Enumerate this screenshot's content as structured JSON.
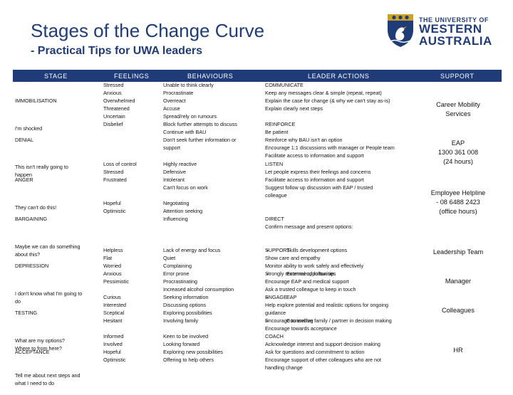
{
  "title": "Stages of the Change Curve",
  "subtitle": "- Practical Tips for UWA leaders",
  "logo": {
    "line1": "THE UNIVERSITY OF",
    "line2": "WESTERN",
    "line3": "AUSTRALIA"
  },
  "colors": {
    "brand": "#1f3c78",
    "crest_gold": "#c9a227"
  },
  "headers": {
    "stage": "STAGE",
    "feelings": "FEELINGS",
    "behaviours": "BEHAVIOURS",
    "leader_actions": "LEADER ACTIONS",
    "support": "SUPPORT"
  },
  "rows": [
    {
      "stage": "IMMOBILISATION",
      "quote": "I'm shocked",
      "feelings": "Stressed\nAnxious\nOverwhelmed\nThreatened\nUncertain\nDisbelief",
      "behaviours": "Unable to think clearly\nProcrastinate\nOverreact\nAccuse\nSpread/rely on rumours"
    },
    {
      "stage": "DENIAL",
      "quote": "This isn't really going to\nhappen",
      "feelings": "",
      "behaviours": "Block further attempts to discuss\nContinue with BAU\nDon't seek further information or\nsupport"
    },
    {
      "stage": "ANGER",
      "quote": "They can't do this!",
      "feelings": "Loss of control\nStressed\nFrustrated",
      "behaviours": "Highly reactive\nDefensive\nIntolerant\nCan't focus on work"
    },
    {
      "stage": "BARGAINING",
      "quote": "Maybe we can do something\nabout this?",
      "feelings": "Hopeful\nOptimistic",
      "behaviours": "Negotiating\nAttention seeking\nInfluencing"
    },
    {
      "stage": "DEPRESSION",
      "quote": "I don't know what I'm going to\ndo",
      "feelings": "Helpless\nFlat\nWorried\nAnxious\nPessimistic",
      "behaviours": "Lack of energy and focus\nQuiet\nComplaining\nError prone\nProcrastinating\nIncreased alcohol consumption"
    },
    {
      "stage": "TESTING",
      "quote": "What are my options?\nWhere to from here?",
      "feelings": "Curious\nInterested\nSceptical\nHesitant",
      "behaviours": "Seeking information\nDiscussing options\nExploring possibilities\nInvolving family"
    },
    {
      "stage": "ACCEPTANCE",
      "quote": "Tell me about next steps and\nwhat I need to do",
      "feelings": "Informed\nInvolved\nHopeful\nOptimistic",
      "behaviours": "Keen to be involved\nLooking forward\nExploring new possibilities\nOffering to help others"
    }
  ],
  "leader_actions": {
    "communicate": "COMMUNICATE\nKeep any messages clear & simple (repeat, repeat)\nExplain the case for change (& why we can't stay as-is)\nExplain clearly next steps",
    "reinforce": "REINFORCE\nBe patient\nReinforce why BAU isn't an option\nEncourage 1:1 discussions with manager or People team\nFacilitate access to information and support",
    "listen": "LISTEN\nLet people express their feelings and concerns\nFacilitate access to information and support\nSuggest follow up discussion with EAP / trusted\ncolleague",
    "direct": "DIRECT\nConfirm message and present options:",
    "direct_bullets": [
      "Skills development options",
      "External opportunities",
      "EAP",
      "Counselling"
    ],
    "support": "SUPPORT\nShow care and empathy\nMonitor ability to work safely and effectively\nStrongly recommend follow up\nEncourage EAP and medical support\nAsk a trusted colleague to keep in touch",
    "engage": "ENGAGE\nHelp explore potential and realistic options for ongoing\nguidance\nEncourage to involve family / partner in decision making\nEncourage towards acceptance",
    "coach": "COACH\nAcknowledge interest and support decision making\nAsk for questions and commitment to action\nEncourage support of other colleagues who are not\nhandling change"
  },
  "support_items": [
    "Career Mobility\nServices",
    "EAP\n1300 361 008\n(24 hours)",
    "Employee Helpline\n- 08 6488 2423\n(office hours)",
    "Leadership Team",
    "Manager",
    "Colleagues",
    "HR"
  ]
}
